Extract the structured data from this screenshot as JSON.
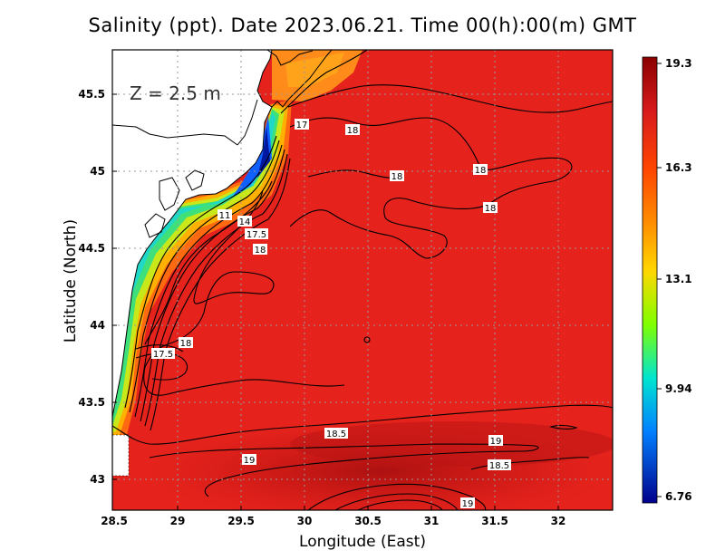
{
  "title": "Salinity (ppt). Date 2023.06.21. Time 00(h):00(m) GMT",
  "x_axis_label": "Longitude (East)",
  "y_axis_label": "Latitude (North)",
  "depth_label": "Z = 2.5 m",
  "x_ticks": [
    "28.5",
    "29",
    "29.5",
    "30",
    "30.5",
    "31",
    "31.5",
    "32"
  ],
  "y_ticks": [
    "43",
    "43.5",
    "44",
    "44.5",
    "45",
    "45.5"
  ],
  "colorbar": {
    "ticks": [
      "19.3",
      "16.3",
      "13.1",
      "9.94",
      "6.76"
    ],
    "colors": [
      "#8b0000",
      "#e31a1c",
      "#ff7f00",
      "#ffd700",
      "#7fff00",
      "#00e0ff",
      "#0060ff",
      "#00008b"
    ]
  },
  "contour_labels": [
    "17",
    "18",
    "18",
    "18",
    "18",
    "17.5",
    "18",
    "17.5",
    "18",
    "18.5",
    "19",
    "19",
    "18.5",
    "19",
    "11",
    "14"
  ],
  "chart_data": {
    "type": "heatmap",
    "variable": "Salinity (ppt)",
    "xlim": [
      28.5,
      32.5
    ],
    "ylim": [
      42.85,
      45.85
    ],
    "colorbar_range": [
      6.76,
      19.3
    ],
    "contour_labels": [
      {
        "value": 17,
        "lon": 29.98,
        "lat": 45.32
      },
      {
        "value": 18,
        "lon": 30.38,
        "lat": 45.28
      },
      {
        "value": 18,
        "lon": 30.71,
        "lat": 44.97
      },
      {
        "value": 18,
        "lon": 31.36,
        "lat": 45.01
      },
      {
        "value": 18,
        "lon": 31.43,
        "lat": 44.77
      },
      {
        "value": 17.5,
        "lon": 29.67,
        "lat": 44.6
      },
      {
        "value": 18,
        "lon": 29.67,
        "lat": 44.52
      },
      {
        "value": 17.5,
        "lon": 28.8,
        "lat": 43.83
      },
      {
        "value": 18,
        "lon": 28.98,
        "lat": 43.9
      },
      {
        "value": 18.5,
        "lon": 30.23,
        "lat": 43.29
      },
      {
        "value": 19,
        "lon": 31.47,
        "lat": 43.24
      },
      {
        "value": 19,
        "lon": 29.38,
        "lat": 43.11
      },
      {
        "value": 18.5,
        "lon": 31.5,
        "lat": 43.07
      },
      {
        "value": 19,
        "lon": 31.26,
        "lat": 42.9
      },
      {
        "value": 11,
        "lon": 29.44,
        "lat": 44.72
      },
      {
        "value": 14,
        "lon": 29.55,
        "lat": 44.69
      }
    ]
  }
}
